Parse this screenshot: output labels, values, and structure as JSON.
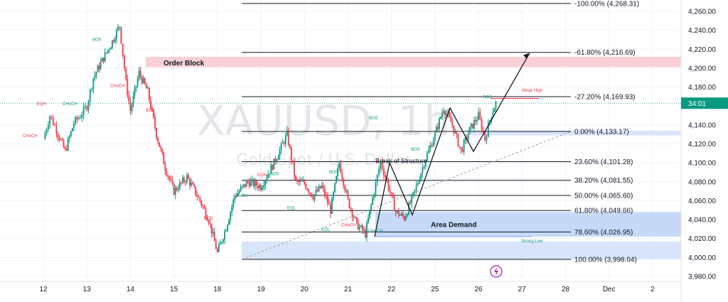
{
  "chart_data": {
    "type": "candlestick",
    "symbol_watermark": "XAUUSD, 1h",
    "subtitle_watermark": "Gold Spot / U.S. Dollar",
    "price_badge": "34:01",
    "ylim": [
      3975,
      4275
    ],
    "yticks": [
      "4,260.00",
      "4,240.00",
      "4,220.00",
      "4,200.00",
      "4,180.00",
      "4,140.00",
      "4,120.00",
      "4,100.00",
      "4,080.00",
      "4,060.00",
      "4,040.00",
      "4,020.00",
      "4,000.00",
      "3,980.00"
    ],
    "ytick_values": [
      4260,
      4240,
      4220,
      4200,
      4180,
      4140,
      4120,
      4100,
      4080,
      4060,
      4040,
      4020,
      4000,
      3980
    ],
    "xticks": [
      {
        "label": "12",
        "day": 0
      },
      {
        "label": "13",
        "day": 1
      },
      {
        "label": "14",
        "day": 2
      },
      {
        "label": "15",
        "day": 3
      },
      {
        "label": "18",
        "day": 4
      },
      {
        "label": "19",
        "day": 5
      },
      {
        "label": "20",
        "day": 6
      },
      {
        "label": "21",
        "day": 7
      },
      {
        "label": "22",
        "day": 8
      },
      {
        "label": "25",
        "day": 9
      },
      {
        "label": "26",
        "day": 10
      },
      {
        "label": "27",
        "day": 11
      },
      {
        "label": "28",
        "day": 12
      },
      {
        "label": "Dec",
        "day": 13
      },
      {
        "label": "2",
        "day": 14
      }
    ],
    "fib_levels": [
      {
        "label": "-100.00% (4,268.31)",
        "value": 4268.31
      },
      {
        "label": "-61.80% (4,216.69)",
        "value": 4216.69
      },
      {
        "label": "-27.20% (4,169.93)",
        "value": 4169.93
      },
      {
        "label": "0.00% (4,133.17)",
        "value": 4133.17
      },
      {
        "label": "23.60% (4,101.28)",
        "value": 4101.28
      },
      {
        "label": "38.20% (4,081.55)",
        "value": 4081.55
      },
      {
        "label": "50.00% (4,065.60)",
        "value": 4065.6
      },
      {
        "label": "61.80% (4,049.66)",
        "value": 4049.66
      },
      {
        "label": "78.60% (4,026.95)",
        "value": 4026.95
      },
      {
        "label": "100.00% (3,998.04)",
        "value": 3998.04
      }
    ],
    "zones": [
      {
        "label": "Order Block",
        "from": 4201,
        "to": 4212,
        "color": "#f8c9cc"
      },
      {
        "label": "Area Demand",
        "from": 4022,
        "to": 4048,
        "color": "#bcd3f7"
      },
      {
        "label": "",
        "from": 3998,
        "to": 4017,
        "color": "#d2e1fa"
      },
      {
        "label": "",
        "from": 4129,
        "to": 4134,
        "color": "#d2e1fa"
      }
    ],
    "annotations": {
      "order_block": "Order Block",
      "area_demand": "Area Demand",
      "break_of_structure": "Break of Structure",
      "weak_high": "Weak High",
      "strong_low": "Strong Low",
      "bos": "BOS",
      "choch": "CHoCH",
      "eqh": "EQH",
      "eql": "EQL"
    },
    "colors": {
      "up": "#089981",
      "down": "#f23645",
      "fib": "#131722",
      "badge": "#089981"
    },
    "candles_key": [
      {
        "day": 0.0,
        "price": 4125
      },
      {
        "day": 0.15,
        "price": 4150
      },
      {
        "day": 0.3,
        "price": 4135
      },
      {
        "day": 0.5,
        "price": 4112
      },
      {
        "day": 0.7,
        "price": 4142
      },
      {
        "day": 0.85,
        "price": 4150
      },
      {
        "day": 1.0,
        "price": 4160
      },
      {
        "day": 1.15,
        "price": 4190
      },
      {
        "day": 1.35,
        "price": 4208
      },
      {
        "day": 1.55,
        "price": 4225
      },
      {
        "day": 1.75,
        "price": 4245
      },
      {
        "day": 1.9,
        "price": 4185
      },
      {
        "day": 2.0,
        "price": 4155
      },
      {
        "day": 2.2,
        "price": 4195
      },
      {
        "day": 2.4,
        "price": 4175
      },
      {
        "day": 2.6,
        "price": 4130
      },
      {
        "day": 2.8,
        "price": 4095
      },
      {
        "day": 3.0,
        "price": 4070
      },
      {
        "day": 3.3,
        "price": 4085
      },
      {
        "day": 3.6,
        "price": 4060
      },
      {
        "day": 3.8,
        "price": 4040
      },
      {
        "day": 4.0,
        "price": 4005
      },
      {
        "day": 4.2,
        "price": 4032
      },
      {
        "day": 4.4,
        "price": 4065
      },
      {
        "day": 4.7,
        "price": 4080
      },
      {
        "day": 5.0,
        "price": 4075
      },
      {
        "day": 5.3,
        "price": 4100
      },
      {
        "day": 5.6,
        "price": 4130
      },
      {
        "day": 5.8,
        "price": 4080
      },
      {
        "day": 6.0,
        "price": 4078
      },
      {
        "day": 6.2,
        "price": 4065
      },
      {
        "day": 6.4,
        "price": 4075
      },
      {
        "day": 6.6,
        "price": 4050
      },
      {
        "day": 6.8,
        "price": 4100
      },
      {
        "day": 7.0,
        "price": 4060
      },
      {
        "day": 7.2,
        "price": 4035
      },
      {
        "day": 7.4,
        "price": 4025
      },
      {
        "day": 7.6,
        "price": 4070
      },
      {
        "day": 7.75,
        "price": 4101
      },
      {
        "day": 7.9,
        "price": 4080
      },
      {
        "day": 8.1,
        "price": 4048
      },
      {
        "day": 8.3,
        "price": 4042
      },
      {
        "day": 8.5,
        "price": 4065
      },
      {
        "day": 8.75,
        "price": 4100
      },
      {
        "day": 9.0,
        "price": 4130
      },
      {
        "day": 9.2,
        "price": 4158
      },
      {
        "day": 9.4,
        "price": 4140
      },
      {
        "day": 9.6,
        "price": 4112
      },
      {
        "day": 9.8,
        "price": 4135
      },
      {
        "day": 10.0,
        "price": 4150
      },
      {
        "day": 10.15,
        "price": 4125
      },
      {
        "day": 10.3,
        "price": 4152
      },
      {
        "day": 10.4,
        "price": 4163
      }
    ]
  }
}
